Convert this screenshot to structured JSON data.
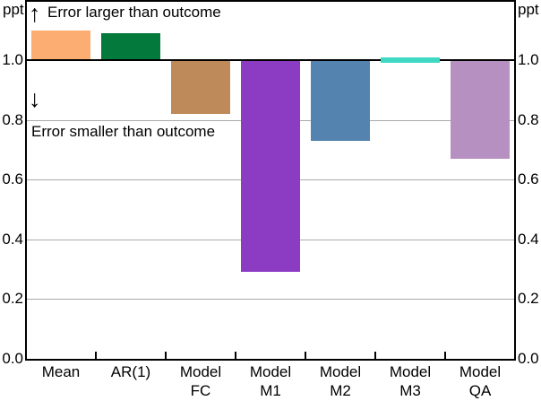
{
  "unit_labels": {
    "left": "ppt",
    "right": "ppt"
  },
  "annotations": {
    "upper_text": "Error larger than outcome",
    "lower_text": "Error smaller than outcome",
    "up_arrow_glyph": "↑",
    "down_arrow_glyph": "↓"
  },
  "chart_data": {
    "type": "bar",
    "title": "",
    "xlabel": "",
    "ylabel": "ppt",
    "baseline": 1.0,
    "categories": [
      "Mean",
      "AR(1)",
      "Model FC",
      "Model M1",
      "Model M2",
      "Model M3",
      "Model QA"
    ],
    "category_lines": [
      [
        "Mean"
      ],
      [
        "AR(1)"
      ],
      [
        "Model",
        "FC"
      ],
      [
        "Model",
        "M1"
      ],
      [
        "Model",
        "M2"
      ],
      [
        "Model",
        "M3"
      ],
      [
        "Model",
        "QA"
      ]
    ],
    "values": [
      1.1,
      1.09,
      0.82,
      0.29,
      0.73,
      1.01,
      0.67
    ],
    "bar_colors": [
      "#FCAD72",
      "#04793C",
      "#BE8A5A",
      "#8C3BC3",
      "#5383AE",
      "#3ED8C3",
      "#B590C1"
    ],
    "ylim": [
      0.0,
      1.2
    ],
    "yticks": [
      0.0,
      0.2,
      0.4,
      0.6,
      0.8,
      1.0
    ],
    "ytick_labels": [
      "0.0",
      "0.2",
      "0.4",
      "0.6",
      "0.8",
      "1.0"
    ],
    "gridline_values": [
      0.2,
      0.4,
      0.6,
      0.8
    ],
    "grid": true,
    "legend_position": "none",
    "axis_color": "#000000",
    "gridline_color": "#aaaaaa",
    "background_color": "#ffffff"
  }
}
